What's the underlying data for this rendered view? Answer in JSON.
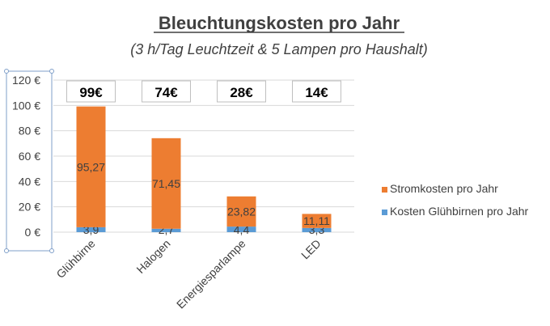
{
  "chart_data": {
    "type": "bar",
    "stacked": true,
    "title": "Bleuchtungskosten pro Jahr",
    "subtitle": "(3 h/Tag Leuchtzeit & 5 Lampen pro Haushalt)",
    "categories": [
      "Glühbirne",
      "Halogen",
      "Energiesparlampe",
      "LED"
    ],
    "series": [
      {
        "name": "Kosten Glühbirnen pro Jahr",
        "values": [
          3.9,
          2.7,
          4.4,
          3.3
        ],
        "labels": [
          "3,9",
          "2,7",
          "4,4",
          "3,3"
        ],
        "color": "#5B9BD5"
      },
      {
        "name": "Stromkosten pro Jahr",
        "values": [
          95.27,
          71.45,
          23.82,
          11.11
        ],
        "labels": [
          "95,27",
          "71,45",
          "23,82",
          "11,11"
        ],
        "color": "#ED7D31"
      }
    ],
    "totals": [
      "99€",
      "74€",
      "28€",
      "14€"
    ],
    "yticks": [
      "0 €",
      "20 €",
      "40 €",
      "60 €",
      "80 €",
      "100 €",
      "120 €"
    ],
    "ylim": [
      0,
      120
    ],
    "grid": true,
    "legend_position": "right"
  }
}
